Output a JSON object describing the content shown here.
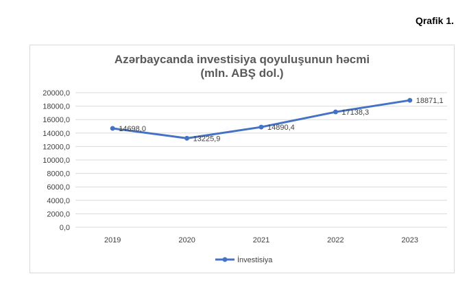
{
  "figure_label": "Qrafik 1.",
  "chart_data": {
    "type": "line",
    "title": [
      "Azərbaycanda investisiya qoyuluşunun həcmi",
      "(mln. ABŞ dol.)"
    ],
    "xlabel": "",
    "ylabel": "",
    "categories": [
      "2019",
      "2020",
      "2021",
      "2022",
      "2023"
    ],
    "series": [
      {
        "name": "İnvestisiya",
        "values": [
          14698.0,
          13225.9,
          14890.4,
          17138.3,
          18871.1
        ],
        "labels": [
          "14698,0",
          "13225,9",
          "14890,4",
          "17138,3",
          "18871,1"
        ],
        "color": "#4472c4"
      }
    ],
    "ylim": [
      0,
      20000
    ],
    "yticks": [
      "0,0",
      "2000,0",
      "4000,0",
      "6000,0",
      "8000,0",
      "10000,0",
      "12000,0",
      "14000,0",
      "16000,0",
      "18000,0",
      "20000,0"
    ],
    "grid": true,
    "legend": "bottom",
    "gridline_color": "#d9d9d9"
  }
}
